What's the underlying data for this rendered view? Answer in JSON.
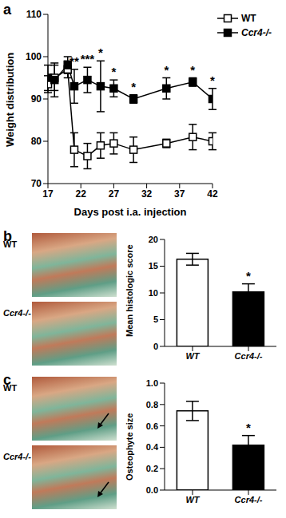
{
  "chart_data": [
    {
      "panel": "a",
      "type": "line",
      "x_label": "Days post i.a. injection",
      "y_label": "Weight distribution",
      "x": [
        17,
        18,
        20,
        21,
        23,
        25,
        27,
        30,
        35,
        39,
        42
      ],
      "series": [
        {
          "name": "WT",
          "color": "#000000",
          "marker": "open_square",
          "values": [
            93.5,
            95,
            97,
            78,
            76.5,
            79,
            79.5,
            78,
            79.5,
            81,
            80
          ],
          "errors": [
            2,
            3,
            2,
            4,
            3,
            3,
            2.5,
            3,
            1,
            3,
            2
          ]
        },
        {
          "name": "Ccr4-/-",
          "color": "#000000",
          "marker": "square",
          "values": [
            95,
            94.5,
            98,
            93,
            94.5,
            93,
            92.5,
            90,
            92.5,
            94,
            90
          ],
          "errors": [
            3,
            4,
            2,
            4,
            3,
            6,
            2,
            1,
            2.5,
            1,
            2.5
          ]
        }
      ],
      "xlim": [
        17,
        42
      ],
      "xticks": [
        17,
        22,
        27,
        32,
        37,
        42
      ],
      "ylim": [
        70,
        110
      ],
      "yticks": [
        70,
        80,
        90,
        100,
        110
      ],
      "legend": "right",
      "annotations": [
        {
          "x": 21,
          "text": "**"
        },
        {
          "x": 23,
          "text": "***"
        },
        {
          "x": 25,
          "text": "*"
        },
        {
          "x": 27,
          "text": "*"
        },
        {
          "x": 30,
          "text": "*"
        },
        {
          "x": 35,
          "text": "*"
        },
        {
          "x": 39,
          "text": "*"
        },
        {
          "x": 42,
          "text": "*"
        }
      ]
    },
    {
      "panel": "b",
      "type": "bar",
      "image_labels": [
        "WT",
        "Ccr4-/-"
      ],
      "y_label": "Mean histologic score",
      "categories": [
        "WT",
        "Ccr4-/-"
      ],
      "values": [
        16.3,
        10.2
      ],
      "errors": [
        1.1,
        1.5
      ],
      "colors": [
        "#ffffff",
        "#000000"
      ],
      "ylim": [
        0,
        20
      ],
      "yticks": [
        0,
        5,
        10,
        15,
        20
      ],
      "annotations": [
        {
          "category": "Ccr4-/-",
          "text": "*"
        }
      ]
    },
    {
      "panel": "c",
      "type": "bar",
      "image_labels": [
        "WT",
        "Ccr4-/-"
      ],
      "y_label": "Osteophyte size",
      "categories": [
        "WT",
        "Ccr4-/-"
      ],
      "values": [
        0.74,
        0.42
      ],
      "errors": [
        0.09,
        0.09
      ],
      "colors": [
        "#ffffff",
        "#000000"
      ],
      "ylim": [
        0,
        1
      ],
      "yticks": [
        {
          "value": 0,
          "label": "0.0"
        },
        0.2,
        0.4,
        0.6,
        0.8,
        {
          "value": 1,
          "label": "1.0"
        }
      ],
      "annotations": [
        {
          "category": "Ccr4-/-",
          "text": "*"
        }
      ]
    }
  ]
}
